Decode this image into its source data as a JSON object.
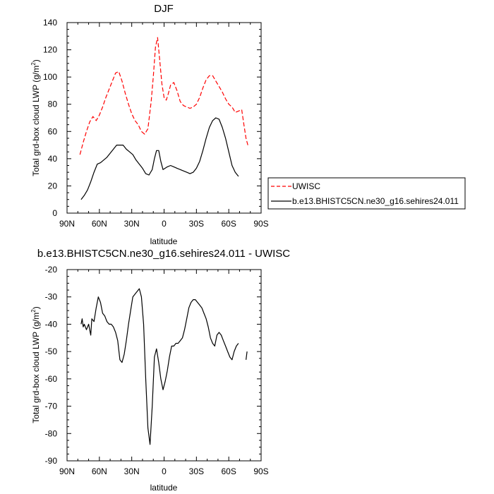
{
  "chart_data": [
    {
      "type": "line",
      "title": "DJF",
      "xlabel": "latitude",
      "ylabel": "Total grd-box cloud LWP (g/m",
      "ylabel_sup": "2",
      "ylabel_end": ")",
      "xlim": [
        90,
        -90
      ],
      "ylim": [
        0,
        140
      ],
      "x_ticks": [
        90,
        60,
        30,
        0,
        -30,
        -60,
        -90
      ],
      "x_tick_labels": [
        "90N",
        "60N",
        "30N",
        "0",
        "30S",
        "60S",
        "90S"
      ],
      "y_ticks": [
        0,
        20,
        40,
        60,
        80,
        100,
        120,
        140
      ],
      "y_tick_labels": [
        "0",
        "20",
        "40",
        "60",
        "80",
        "100",
        "120",
        "140"
      ],
      "legend": "right",
      "series": [
        {
          "name": "UWISC",
          "color": "#ff0000",
          "dash": "dashed",
          "x": [
            78,
            75,
            72,
            69,
            66,
            63,
            60,
            57,
            54,
            51,
            48,
            45,
            42,
            39,
            36,
            33,
            30,
            27,
            24,
            21,
            18,
            15,
            12,
            10,
            8,
            6,
            4,
            2,
            0,
            -2,
            -4,
            -6,
            -9,
            -12,
            -15,
            -18,
            -21,
            -24,
            -27,
            -30,
            -33,
            -36,
            -39,
            -42,
            -45,
            -48,
            -51,
            -54,
            -57,
            -60,
            -63,
            -66,
            -69,
            -72,
            -74,
            -76,
            -78
          ],
          "y": [
            43,
            52,
            60,
            67,
            71,
            68,
            72,
            78,
            85,
            91,
            97,
            103,
            104,
            97,
            88,
            80,
            73,
            68,
            65,
            60,
            58,
            62,
            82,
            100,
            122,
            129,
            112,
            95,
            85,
            83,
            88,
            94,
            96,
            90,
            82,
            79,
            78,
            77,
            78,
            80,
            85,
            92,
            98,
            101,
            101,
            97,
            93,
            89,
            84,
            80,
            78,
            74,
            75,
            76,
            65,
            55,
            49
          ]
        },
        {
          "name": "b.e13.BHISTC5CN.ne30_g16.sehires24.011",
          "color": "#000000",
          "dash": "solid",
          "x": [
            77,
            74,
            71,
            68,
            65,
            62,
            59,
            56,
            53,
            50,
            47,
            44,
            41,
            38,
            35,
            32,
            29,
            26,
            23,
            20,
            17,
            14,
            11,
            9,
            7,
            5,
            3,
            1,
            -1,
            -3,
            -6,
            -9,
            -12,
            -15,
            -18,
            -21,
            -24,
            -27,
            -30,
            -33,
            -36,
            -39,
            -42,
            -45,
            -48,
            -51,
            -54,
            -57,
            -60,
            -63,
            -66,
            -69
          ],
          "y": [
            10,
            13,
            17,
            23,
            30,
            36,
            37,
            39,
            41,
            44,
            47,
            50,
            50,
            50,
            47,
            45,
            43,
            39,
            36,
            33,
            29,
            28,
            32,
            40,
            46,
            46,
            38,
            32,
            33,
            34,
            35,
            34,
            33,
            32,
            31,
            30,
            29,
            30,
            33,
            38,
            46,
            55,
            63,
            68,
            70,
            69,
            63,
            55,
            45,
            35,
            30,
            27
          ]
        }
      ]
    },
    {
      "type": "line",
      "title": "b.e13.BHISTC5CN.ne30_g16.sehires24.011 - UWISC",
      "xlabel": "latitude",
      "ylabel": "Total grd-box cloud LWP (g/m",
      "ylabel_sup": "2",
      "ylabel_end": ")",
      "xlim": [
        90,
        -90
      ],
      "ylim": [
        -90,
        -20
      ],
      "x_ticks": [
        90,
        60,
        30,
        0,
        -30,
        -60,
        -90
      ],
      "x_tick_labels": [
        "90N",
        "60N",
        "30N",
        "0",
        "30S",
        "60S",
        "90S"
      ],
      "y_ticks": [
        -90,
        -80,
        -70,
        -60,
        -50,
        -40,
        -30,
        -20
      ],
      "y_tick_labels": [
        "-90",
        "-80",
        "-70",
        "-60",
        "-50",
        "-40",
        "-30",
        "-20"
      ],
      "series": [
        {
          "name": "",
          "color": "#000000",
          "dash": "solid",
          "x": [
            77,
            76,
            75,
            74,
            72,
            70,
            68,
            67,
            65,
            63,
            61,
            59,
            57,
            55,
            53,
            51,
            49,
            47,
            45,
            43,
            41,
            39,
            37,
            35,
            33,
            31,
            29,
            27,
            25,
            23,
            21,
            19,
            17,
            15,
            13,
            11,
            9,
            7,
            5,
            3,
            1,
            -1,
            -3,
            -5,
            -7,
            -9,
            -11,
            -13,
            -15,
            -17,
            -19,
            -21,
            -23,
            -25,
            -27,
            -29,
            -31,
            -33,
            -35,
            -37,
            -39,
            -41,
            -43,
            -45,
            -47,
            -49,
            -51,
            -53,
            -55,
            -57,
            -59,
            -61,
            -63,
            -65,
            -67,
            -69
          ],
          "y": [
            -40,
            -38,
            -41,
            -40,
            -42,
            -40,
            -44,
            -38,
            -39,
            -34,
            -30,
            -32,
            -36,
            -37,
            -39,
            -40,
            -40,
            -41,
            -43,
            -46,
            -53,
            -54,
            -51,
            -46,
            -40,
            -35,
            -30,
            -29,
            -28,
            -27,
            -30,
            -40,
            -60,
            -78,
            -84,
            -70,
            -52,
            -49,
            -54,
            -60,
            -64,
            -61,
            -57,
            -52,
            -48,
            -48,
            -47,
            -47,
            -46,
            -45,
            -42,
            -38,
            -34,
            -32,
            -31,
            -31,
            -32,
            -33,
            -34,
            -36,
            -38,
            -41,
            -45,
            -47,
            -48,
            -44,
            -43,
            -44,
            -46,
            -48,
            -50,
            -52,
            -53,
            -50,
            -48,
            -47
          ]
        },
        {
          "name": "",
          "color": "#000000",
          "dash": "solid",
          "x": [
            -76,
            -77
          ],
          "y": [
            -53,
            -50
          ]
        }
      ]
    }
  ]
}
